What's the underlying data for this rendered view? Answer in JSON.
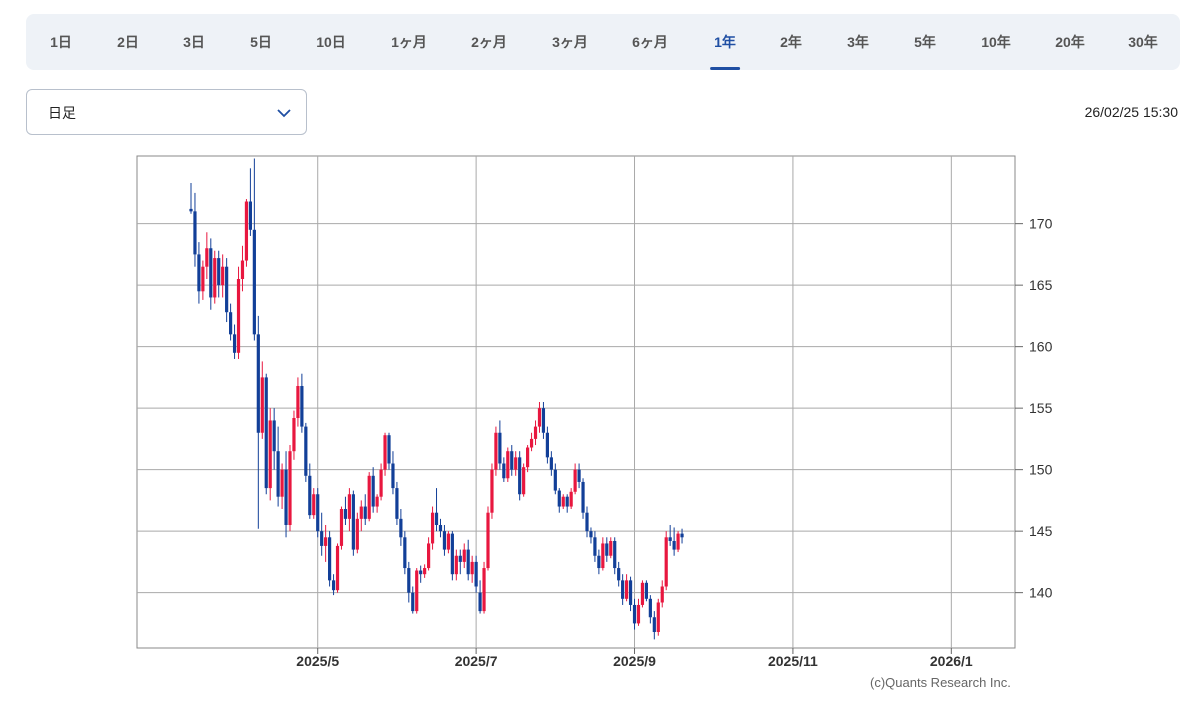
{
  "tabs": [
    {
      "label": "1日",
      "active": false
    },
    {
      "label": "2日",
      "active": false
    },
    {
      "label": "3日",
      "active": false
    },
    {
      "label": "5日",
      "active": false
    },
    {
      "label": "10日",
      "active": false
    },
    {
      "label": "1ヶ月",
      "active": false
    },
    {
      "label": "2ヶ月",
      "active": false
    },
    {
      "label": "3ヶ月",
      "active": false
    },
    {
      "label": "6ヶ月",
      "active": false
    },
    {
      "label": "1年",
      "active": true
    },
    {
      "label": "2年",
      "active": false
    },
    {
      "label": "3年",
      "active": false
    },
    {
      "label": "5年",
      "active": false
    },
    {
      "label": "10年",
      "active": false
    },
    {
      "label": "20年",
      "active": false
    },
    {
      "label": "30年",
      "active": false
    }
  ],
  "interval_select": {
    "value": "日足"
  },
  "timestamp": "26/02/25 15:30",
  "credit": "(c)Quants Research Inc.",
  "colors": {
    "up": "#e8173f",
    "down": "#123f98",
    "active_tab": "#1f4fa3",
    "grid": "#a9a9a9"
  },
  "chart_data": {
    "type": "candlestick",
    "title": "",
    "xlabel": "",
    "ylabel": "",
    "y_ticks": [
      140,
      145,
      150,
      155,
      160,
      165,
      170
    ],
    "ylim": [
      135.5,
      175.5
    ],
    "x_tick_labels": [
      "2025/5",
      "2025/7",
      "2025/9",
      "2025/11",
      "2026/1"
    ],
    "x_tick_index": [
      32,
      72,
      112,
      152,
      192
    ],
    "grid": true,
    "candles": [
      [
        171.2,
        173.3,
        170.8,
        171.0
      ],
      [
        171.0,
        172.5,
        166.5,
        167.5
      ],
      [
        167.5,
        168.5,
        163.5,
        164.5
      ],
      [
        164.5,
        167.0,
        163.8,
        166.5
      ],
      [
        166.5,
        169.3,
        165.5,
        168.0
      ],
      [
        168.0,
        168.8,
        163.0,
        164.0
      ],
      [
        164.0,
        167.8,
        163.5,
        167.2
      ],
      [
        167.2,
        167.8,
        164.0,
        165.0
      ],
      [
        165.0,
        167.5,
        164.0,
        166.5
      ],
      [
        166.5,
        167.2,
        162.0,
        162.8
      ],
      [
        162.8,
        163.5,
        160.5,
        161.0
      ],
      [
        161.0,
        161.8,
        159.0,
        159.5
      ],
      [
        159.5,
        166.5,
        159.0,
        165.5
      ],
      [
        165.5,
        168.2,
        164.5,
        167.0
      ],
      [
        167.0,
        172.0,
        166.5,
        171.8
      ],
      [
        171.8,
        174.5,
        169.0,
        169.5
      ],
      [
        169.5,
        175.3,
        160.5,
        161.0
      ],
      [
        161.0,
        162.5,
        145.2,
        153.0
      ],
      [
        153.0,
        158.8,
        152.5,
        157.5
      ],
      [
        157.5,
        157.8,
        148.0,
        148.5
      ],
      [
        148.5,
        155.0,
        147.5,
        154.0
      ],
      [
        154.0,
        155.0,
        150.0,
        151.5
      ],
      [
        151.5,
        153.5,
        147.0,
        147.8
      ],
      [
        147.8,
        150.5,
        146.8,
        150.0
      ],
      [
        150.0,
        151.5,
        144.5,
        145.5
      ],
      [
        145.5,
        152.0,
        145.0,
        151.5
      ],
      [
        151.5,
        154.8,
        150.8,
        154.2
      ],
      [
        154.2,
        157.5,
        153.5,
        156.8
      ],
      [
        156.8,
        157.8,
        153.0,
        153.5
      ],
      [
        153.5,
        153.8,
        149.0,
        149.5
      ],
      [
        149.5,
        150.5,
        146.0,
        146.3
      ],
      [
        146.3,
        148.5,
        146.0,
        148.0
      ],
      [
        148.0,
        148.5,
        144.5,
        145.0
      ],
      [
        145.0,
        146.5,
        143.0,
        143.8
      ],
      [
        143.8,
        145.5,
        142.5,
        144.5
      ],
      [
        144.5,
        145.0,
        140.5,
        141.0
      ],
      [
        141.0,
        141.5,
        139.8,
        140.2
      ],
      [
        140.2,
        144.0,
        140.0,
        143.8
      ],
      [
        143.8,
        147.0,
        143.5,
        146.8
      ],
      [
        146.8,
        147.8,
        145.5,
        146.0
      ],
      [
        146.0,
        148.5,
        145.0,
        148.0
      ],
      [
        148.0,
        148.3,
        143.0,
        143.5
      ],
      [
        143.5,
        146.5,
        143.2,
        146.0
      ],
      [
        146.0,
        147.5,
        145.0,
        147.0
      ],
      [
        147.0,
        148.0,
        145.5,
        146.0
      ],
      [
        146.0,
        149.8,
        145.8,
        149.5
      ],
      [
        149.5,
        150.2,
        146.5,
        147.0
      ],
      [
        147.0,
        148.0,
        146.5,
        147.8
      ],
      [
        147.8,
        150.5,
        147.5,
        150.0
      ],
      [
        150.0,
        153.0,
        149.5,
        152.8
      ],
      [
        152.8,
        153.0,
        150.0,
        150.5
      ],
      [
        150.5,
        151.5,
        148.0,
        148.5
      ],
      [
        148.5,
        149.0,
        145.5,
        146.0
      ],
      [
        146.0,
        146.8,
        143.8,
        144.5
      ],
      [
        144.5,
        145.0,
        141.5,
        142.0
      ],
      [
        142.0,
        142.5,
        139.2,
        140.0
      ],
      [
        140.0,
        140.5,
        138.3,
        138.5
      ],
      [
        138.5,
        142.0,
        138.3,
        141.8
      ],
      [
        141.8,
        142.2,
        140.8,
        141.5
      ],
      [
        141.5,
        142.3,
        141.2,
        142.0
      ],
      [
        142.0,
        144.5,
        141.8,
        144.0
      ],
      [
        144.0,
        147.0,
        143.5,
        146.5
      ],
      [
        146.5,
        148.5,
        145.0,
        145.5
      ],
      [
        145.5,
        146.0,
        144.5,
        145.0
      ],
      [
        145.0,
        145.5,
        143.0,
        143.5
      ],
      [
        143.5,
        145.0,
        143.2,
        144.8
      ],
      [
        144.8,
        145.0,
        141.0,
        141.5
      ],
      [
        141.5,
        143.5,
        141.0,
        143.0
      ],
      [
        143.0,
        143.5,
        141.5,
        142.5
      ],
      [
        142.5,
        144.0,
        142.0,
        143.5
      ],
      [
        143.5,
        144.3,
        141.0,
        141.5
      ],
      [
        141.5,
        143.0,
        140.8,
        142.5
      ],
      [
        142.5,
        143.0,
        140.0,
        140.5
      ],
      [
        140.0,
        141.0,
        138.3,
        138.5
      ],
      [
        138.5,
        142.5,
        138.3,
        142.0
      ],
      [
        142.0,
        147.0,
        141.8,
        146.5
      ],
      [
        146.5,
        150.5,
        146.0,
        150.0
      ],
      [
        150.0,
        153.5,
        149.5,
        153.0
      ],
      [
        153.0,
        154.0,
        150.0,
        150.5
      ],
      [
        150.5,
        151.0,
        149.0,
        149.3
      ],
      [
        149.3,
        151.8,
        149.0,
        151.5
      ],
      [
        151.5,
        152.0,
        149.5,
        150.0
      ],
      [
        150.0,
        151.5,
        149.5,
        151.0
      ],
      [
        151.0,
        151.5,
        147.5,
        148.0
      ],
      [
        148.0,
        150.5,
        147.8,
        150.2
      ],
      [
        150.2,
        152.0,
        149.8,
        151.8
      ],
      [
        151.8,
        153.0,
        151.5,
        152.5
      ],
      [
        152.5,
        154.0,
        152.0,
        153.5
      ],
      [
        153.5,
        155.5,
        153.0,
        155.0
      ],
      [
        155.0,
        155.5,
        152.5,
        153.0
      ],
      [
        153.0,
        153.5,
        150.5,
        151.0
      ],
      [
        151.0,
        151.5,
        149.5,
        150.0
      ],
      [
        150.0,
        150.5,
        148.0,
        148.3
      ],
      [
        148.3,
        148.5,
        146.5,
        147.0
      ],
      [
        147.0,
        148.0,
        146.8,
        147.8
      ],
      [
        147.8,
        148.0,
        146.5,
        147.0
      ],
      [
        147.0,
        148.5,
        146.8,
        148.2
      ],
      [
        148.2,
        150.5,
        148.0,
        150.0
      ],
      [
        150.0,
        150.5,
        148.5,
        149.0
      ],
      [
        149.0,
        149.3,
        146.0,
        146.5
      ],
      [
        146.5,
        147.0,
        144.5,
        145.0
      ],
      [
        145.0,
        145.3,
        144.0,
        144.5
      ],
      [
        144.5,
        145.0,
        142.5,
        143.0
      ],
      [
        143.0,
        143.5,
        141.5,
        142.0
      ],
      [
        142.0,
        144.5,
        141.8,
        144.0
      ],
      [
        144.0,
        144.5,
        142.5,
        143.0
      ],
      [
        143.0,
        144.5,
        142.8,
        144.2
      ],
      [
        144.2,
        144.5,
        141.5,
        142.0
      ],
      [
        142.0,
        142.5,
        140.5,
        141.0
      ],
      [
        141.0,
        141.5,
        139.0,
        139.5
      ],
      [
        139.5,
        141.5,
        139.3,
        141.0
      ],
      [
        141.0,
        141.3,
        138.5,
        139.0
      ],
      [
        139.0,
        139.5,
        137.0,
        137.5
      ],
      [
        137.5,
        139.5,
        137.3,
        139.0
      ],
      [
        139.0,
        141.0,
        138.8,
        140.8
      ],
      [
        140.8,
        141.0,
        139.3,
        139.5
      ],
      [
        139.5,
        139.8,
        137.5,
        138.0
      ],
      [
        138.0,
        138.5,
        136.2,
        136.8
      ],
      [
        136.8,
        139.5,
        136.5,
        139.2
      ],
      [
        139.2,
        141.0,
        138.8,
        140.5
      ],
      [
        140.5,
        145.0,
        140.2,
        144.5
      ],
      [
        144.5,
        145.5,
        143.8,
        144.2
      ],
      [
        144.2,
        145.3,
        143.0,
        143.5
      ],
      [
        143.5,
        145.0,
        143.3,
        144.8
      ],
      [
        144.8,
        145.2,
        144.0,
        144.5
      ]
    ]
  }
}
